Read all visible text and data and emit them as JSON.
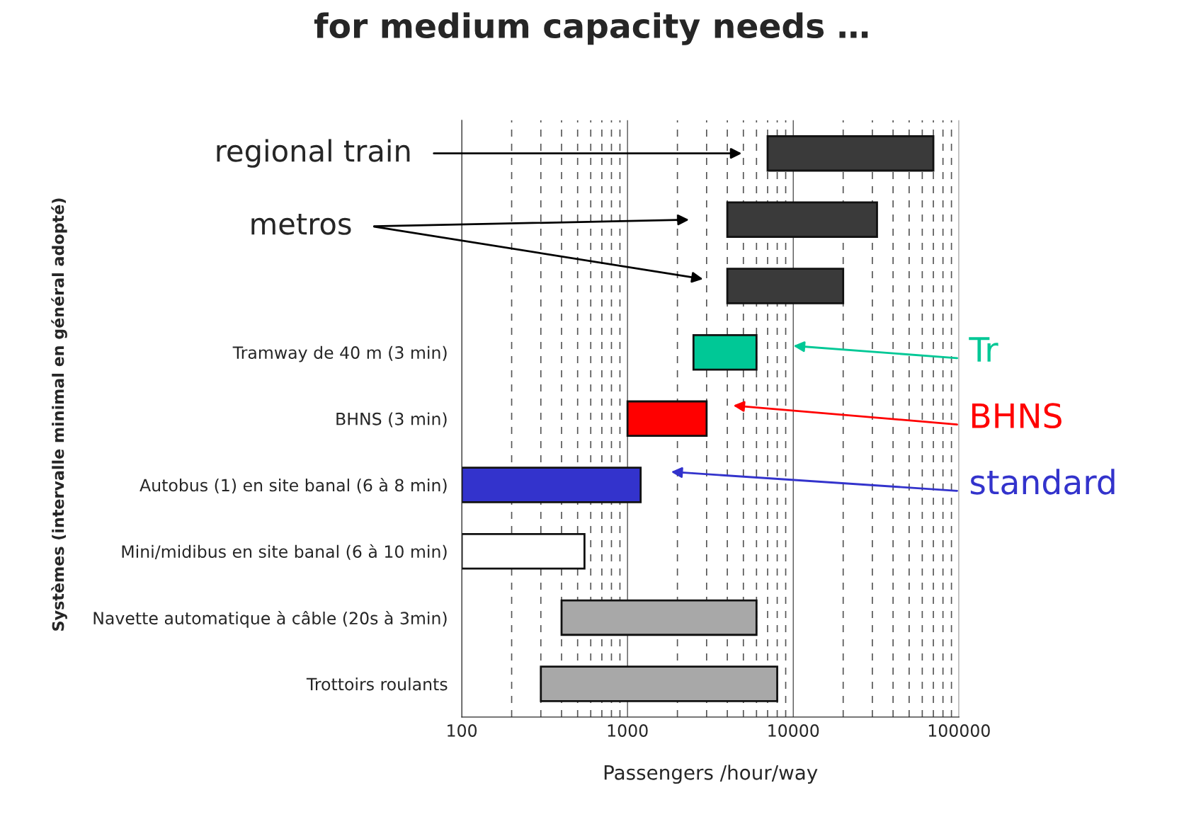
{
  "chart_data": {
    "type": "bar",
    "orientation": "horizontal",
    "title": "for medium capacity needs …",
    "xlabel": "Passengers /hour/way",
    "ylabel": "Systèmes (intervalle minimal en général adopté)",
    "categories": [
      null,
      null,
      null,
      "Tramway de 40 m (3 min)",
      "BHNS (3 min)",
      "Autobus (1) en site banal (6 à 8 min)",
      "Mini/midibus en site banal (6 à 10 min)",
      "Navette automatique à câble (20s à 3min)",
      "Trottoirs roulants"
    ],
    "base": [
      7000,
      4000,
      4000,
      2500,
      1000,
      100,
      100,
      400,
      300
    ],
    "values": [
      63000,
      28000,
      16000,
      3500,
      2000,
      1100,
      450,
      5600,
      7700
    ],
    "colors": [
      "#3a3a3a",
      "#3a3a3a",
      "#3a3a3a",
      "#00c896",
      "#ff0000",
      "#3333cc",
      "#ffffff",
      "#a8a8a8",
      "#a8a8a8"
    ],
    "log": "x",
    "xlim": [
      100,
      100000
    ],
    "xticks": [
      100,
      1000,
      10000,
      100000
    ],
    "grid": "x",
    "annotations": [
      "regional train",
      "metros",
      "Tr",
      "BHNS",
      "standard"
    ]
  }
}
